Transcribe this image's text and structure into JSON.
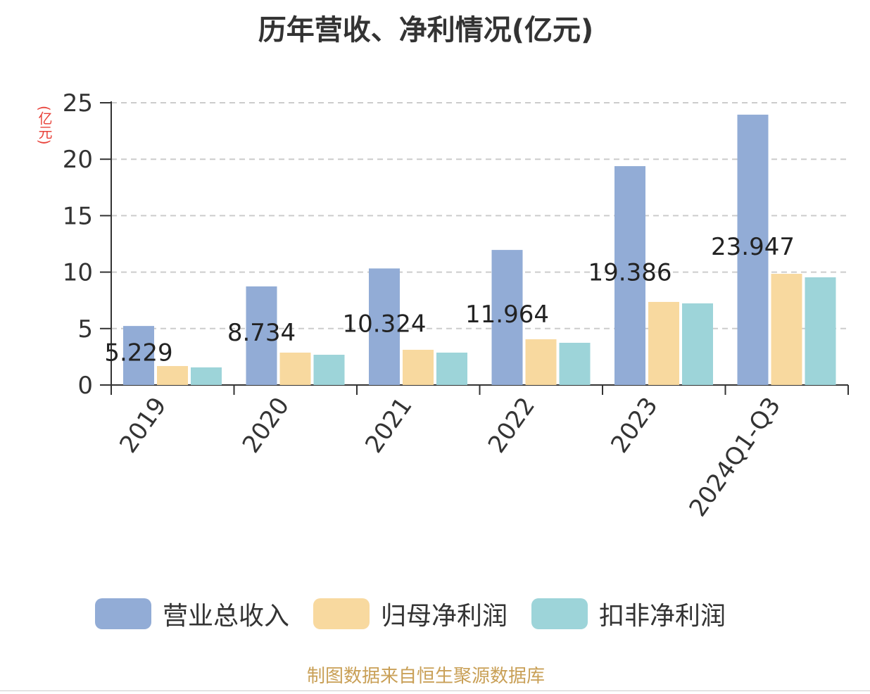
{
  "chart_data": {
    "type": "bar",
    "title": "历年营收、净利情况(亿元)",
    "ylabel": "(亿元)",
    "xlabel": "",
    "ylim": [
      0,
      25
    ],
    "yticks": [
      0,
      5,
      10,
      15,
      20,
      25
    ],
    "grid": true,
    "legend_placement": "bottom",
    "categories": [
      "2019",
      "2020",
      "2021",
      "2022",
      "2023",
      "2024Q1-Q3"
    ],
    "series": [
      {
        "name": "营业总收入",
        "color": "#92acd6",
        "values": [
          5.229,
          8.734,
          10.324,
          11.964,
          19.386,
          23.947
        ],
        "labels": [
          "5.229",
          "8.734",
          "10.324",
          "11.964",
          "19.386",
          "23.947"
        ]
      },
      {
        "name": "归母净利润",
        "color": "#f8d99f",
        "values": [
          1.68,
          2.87,
          3.12,
          4.05,
          7.36,
          9.85
        ]
      },
      {
        "name": "扣非净利润",
        "color": "#9dd4d9",
        "values": [
          1.56,
          2.68,
          2.87,
          3.74,
          7.23,
          9.54
        ]
      }
    ]
  },
  "footer": "制图数据来自恒生聚源数据库"
}
